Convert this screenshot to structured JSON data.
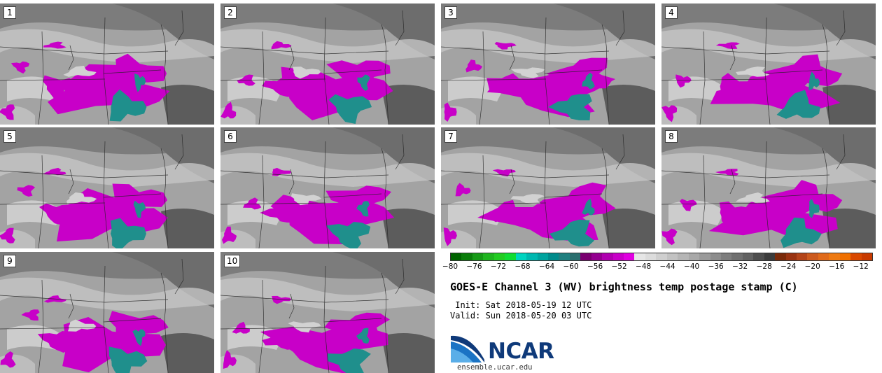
{
  "panels": [
    {
      "label": "1"
    },
    {
      "label": "2"
    },
    {
      "label": "3"
    },
    {
      "label": "4"
    },
    {
      "label": "5"
    },
    {
      "label": "6"
    },
    {
      "label": "7"
    },
    {
      "label": "8"
    },
    {
      "label": "9"
    },
    {
      "label": "10"
    }
  ],
  "colorbar": {
    "ticks": [
      "−80",
      "−76",
      "−72",
      "−68",
      "−64",
      "−60",
      "−56",
      "−52",
      "−48",
      "−44",
      "−40",
      "−36",
      "−32",
      "−28",
      "−24",
      "−20",
      "−16",
      "−12"
    ],
    "colors": [
      "#006400",
      "#0a7d0a",
      "#169a16",
      "#1fb51f",
      "#22cc22",
      "#10dd33",
      "#00d4c0",
      "#00b8b0",
      "#00a39e",
      "#008b8b",
      "#1f7f7f",
      "#2a6e6e",
      "#7a0070",
      "#940090",
      "#b000b0",
      "#c800c8",
      "#e000e0",
      "#e6e6e6",
      "#dcdcdc",
      "#cfcfcf",
      "#c2c2c2",
      "#b5b5b5",
      "#a8a8a8",
      "#9a9a9a",
      "#8c8c8c",
      "#7e7e7e",
      "#707070",
      "#626262",
      "#4e4e4e",
      "#3c3c3c",
      "#7a2a0a",
      "#993311",
      "#b34419",
      "#cc5a1e",
      "#e06a1a",
      "#ee7a12",
      "#f07000",
      "#d94800",
      "#c83a00"
    ]
  },
  "title": "GOES-E Channel 3 (WV) brightness temp postage stamp (C)",
  "init": " Init: Sat 2018-05-19 12 UTC",
  "valid": "Valid: Sun 2018-05-20 03 UTC",
  "logo": {
    "text": "NCAR",
    "icon": "ncar-logo-icon"
  },
  "site": "ensemble.ucar.edu"
}
